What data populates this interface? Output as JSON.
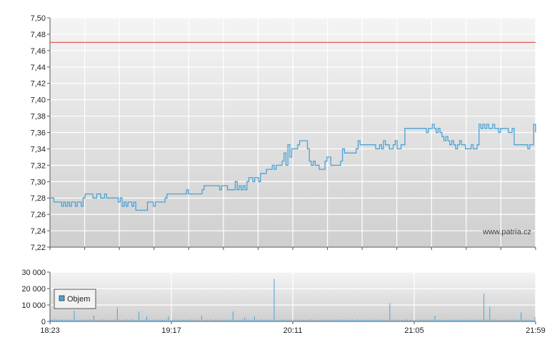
{
  "colors": {
    "price_line": "#4aa3d6",
    "reference_line": "#e05a5a",
    "volume_bars": "#4aa3d6",
    "plot_bg_top": "#f4f4f4",
    "plot_bg_bottom": "#cfcfcf",
    "grid": "#ffffff"
  },
  "watermark": "www.patria.cz",
  "chart_data": [
    {
      "type": "line",
      "name": "price",
      "x_ticks": [
        "18:23",
        "19:17",
        "20:11",
        "21:05",
        "21:59"
      ],
      "y_ticks": [
        "7,22",
        "7,24",
        "7,26",
        "7,28",
        "7,30",
        "7,32",
        "7,34",
        "7,36",
        "7,38",
        "7,40",
        "7,42",
        "7,44",
        "7,46",
        "7,48",
        "7,50"
      ],
      "ylim": [
        7.22,
        7.5
      ],
      "reference_line": 7.47,
      "series": [
        {
          "values": [
            7.28,
            7.28,
            7.275,
            7.275,
            7.275,
            7.275,
            7.27,
            7.275,
            7.27,
            7.275,
            7.27,
            7.275,
            7.275,
            7.27,
            7.275,
            7.275,
            7.27,
            7.28,
            7.285,
            7.285,
            7.285,
            7.285,
            7.28,
            7.28,
            7.285,
            7.285,
            7.28,
            7.28,
            7.285,
            7.28,
            7.28,
            7.28,
            7.28,
            7.28,
            7.28,
            7.275,
            7.28,
            7.27,
            7.275,
            7.27,
            7.275,
            7.275,
            7.27,
            7.275,
            7.265,
            7.265,
            7.265,
            7.265,
            7.265,
            7.265,
            7.275,
            7.275,
            7.275,
            7.27,
            7.275,
            7.275,
            7.275,
            7.275,
            7.275,
            7.28,
            7.285,
            7.285,
            7.285,
            7.285,
            7.285,
            7.285,
            7.285,
            7.285,
            7.285,
            7.285,
            7.29,
            7.285,
            7.285,
            7.285,
            7.285,
            7.285,
            7.285,
            7.285,
            7.29,
            7.295,
            7.295,
            7.295,
            7.295,
            7.295,
            7.295,
            7.295,
            7.295,
            7.29,
            7.295,
            7.295,
            7.295,
            7.29,
            7.29,
            7.29,
            7.29,
            7.3,
            7.29,
            7.295,
            7.29,
            7.295,
            7.29,
            7.3,
            7.305,
            7.305,
            7.3,
            7.305,
            7.305,
            7.3,
            7.31,
            7.31,
            7.31,
            7.315,
            7.315,
            7.315,
            7.32,
            7.315,
            7.32,
            7.32,
            7.32,
            7.325,
            7.335,
            7.32,
            7.345,
            7.33,
            7.34,
            7.34,
            7.34,
            7.345,
            7.35,
            7.35,
            7.35,
            7.35,
            7.34,
            7.325,
            7.32,
            7.325,
            7.32,
            7.32,
            7.315,
            7.315,
            7.315,
            7.325,
            7.33,
            7.33,
            7.32,
            7.32,
            7.32,
            7.32,
            7.32,
            7.325,
            7.34,
            7.335,
            7.335,
            7.335,
            7.335,
            7.335,
            7.335,
            7.34,
            7.35,
            7.345,
            7.345,
            7.345,
            7.345,
            7.345,
            7.345,
            7.345,
            7.345,
            7.34,
            7.34,
            7.345,
            7.34,
            7.35,
            7.345,
            7.345,
            7.34,
            7.34,
            7.345,
            7.35,
            7.34,
            7.34,
            7.345,
            7.345,
            7.365,
            7.365,
            7.365,
            7.365,
            7.365,
            7.365,
            7.365,
            7.365,
            7.365,
            7.365,
            7.365,
            7.36,
            7.365,
            7.365,
            7.37,
            7.365,
            7.36,
            7.365,
            7.36,
            7.355,
            7.35,
            7.355,
            7.35,
            7.345,
            7.35,
            7.345,
            7.34,
            7.345,
            7.35,
            7.345,
            7.345,
            7.34,
            7.34,
            7.34,
            7.345,
            7.34,
            7.34,
            7.345,
            7.37,
            7.365,
            7.37,
            7.365,
            7.37,
            7.365,
            7.365,
            7.37,
            7.365,
            7.365,
            7.36,
            7.365,
            7.365,
            7.365,
            7.365,
            7.36,
            7.36,
            7.365,
            7.345,
            7.345,
            7.345,
            7.345,
            7.345,
            7.345,
            7.345,
            7.34,
            7.345,
            7.345,
            7.37,
            7.36
          ]
        }
      ]
    },
    {
      "type": "bar",
      "name": "volume",
      "x_ticks": [
        "18:23",
        "19:17",
        "20:11",
        "21:05",
        "21:59"
      ],
      "y_ticks": [
        "0",
        "10 000",
        "20 000",
        "30 000"
      ],
      "ylim": [
        0,
        30000
      ],
      "legend": "Objem",
      "series": [
        {
          "name": "Objem",
          "values": [
            1200,
            900,
            1500,
            1000,
            1100,
            800,
            1300,
            1000,
            900,
            1200,
            1100,
            800,
            6500,
            1000,
            900,
            1100,
            1000,
            1200,
            900,
            1100,
            1300,
            1000,
            3500,
            1000,
            900,
            1100,
            1000,
            1200,
            900,
            1100,
            1000,
            900,
            1100,
            1200,
            8500,
            1000,
            900,
            1100,
            1000,
            1200,
            900,
            1100,
            1300,
            900,
            1000,
            6000,
            1000,
            900,
            1100,
            3000,
            1000,
            900,
            1100,
            1000,
            1200,
            900,
            1100,
            1000,
            900,
            1100,
            3000,
            1000,
            900,
            1100,
            1000,
            1200,
            900,
            1100,
            1000,
            900,
            1100,
            1000,
            1200,
            900,
            1100,
            1000,
            900,
            3500,
            1000,
            900,
            1100,
            1000,
            1200,
            900,
            1100,
            1000,
            900,
            1100,
            1000,
            1200,
            900,
            1100,
            1000,
            6000,
            1000,
            900,
            1100,
            1000,
            1200,
            2500,
            1100,
            1000,
            900,
            1100,
            3000,
            1200,
            900,
            1100,
            1000,
            900,
            1100,
            1000,
            1200,
            900,
            26000,
            1000,
            900,
            1100,
            1000,
            1200,
            900,
            1100,
            1000,
            900,
            1100,
            1000,
            1200,
            900,
            1100,
            1000,
            900,
            1100,
            1000,
            1200,
            900,
            1100,
            1000,
            900,
            1100,
            1000,
            1200,
            900,
            1100,
            1000,
            900,
            1100,
            1000,
            1200,
            900,
            1100,
            1000,
            900,
            1100,
            1000,
            1200,
            900,
            1100,
            1000,
            900,
            1100,
            1000,
            1200,
            900,
            1100,
            1000,
            900,
            1100,
            1000,
            1200,
            900,
            1100,
            1000,
            900,
            11000,
            1000,
            1200,
            900,
            1100,
            1000,
            900,
            1100,
            1000,
            1200,
            900,
            1100,
            1000,
            900,
            1100,
            1000,
            1200,
            900,
            1100,
            1000,
            900,
            1100,
            1000,
            3500,
            900,
            1100,
            1000,
            900,
            1100,
            1000,
            1200,
            900,
            1100,
            1000,
            900,
            1100,
            1000,
            1200,
            900,
            1100,
            1000,
            900,
            1100,
            1000,
            1200,
            900,
            1100,
            1000,
            17000,
            1100,
            1000,
            9000,
            1100,
            1000,
            1200,
            900,
            1100,
            1000,
            900,
            1100,
            1000,
            1200,
            900,
            1100,
            1000,
            900,
            1100,
            5500,
            1000,
            1200,
            900,
            1100,
            1000,
            900,
            2500
          ]
        }
      ]
    }
  ]
}
